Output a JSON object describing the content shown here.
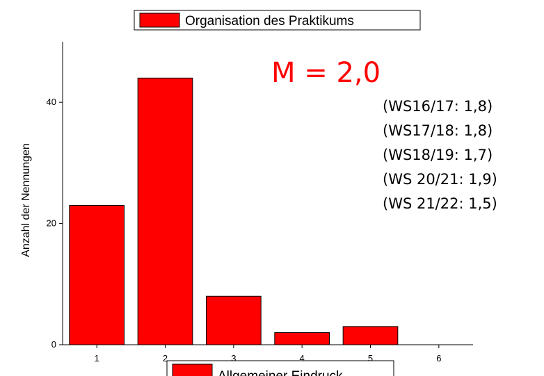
{
  "chart_data": {
    "type": "bar",
    "legend_top": "Organisation des Praktikums",
    "legend_bottom": "Allgemeiner Eindruck",
    "y_label": "Anzahl der Nennungen",
    "annotations": [
      "M = 2,0",
      "(WS16/17: 1,8)",
      "(WS17/18: 1,8)",
      "(WS18/19: 1,7)",
      "(WS 20/21: 1,9)",
      "(WS 21/22: 1,5)"
    ],
    "annotation_color": "#ff0000",
    "x": [
      1,
      2,
      3,
      4,
      5,
      6
    ],
    "series": [
      {
        "name": "Organisation des Praktikums",
        "color": "#ff0000",
        "values": [
          23,
          44,
          8,
          2,
          3,
          0
        ]
      }
    ],
    "xlim": [
      0.5,
      6.5
    ],
    "xticks": [
      1,
      2,
      3,
      4,
      5,
      6
    ],
    "ylim": [
      0,
      50
    ],
    "yticks": [
      0,
      20,
      40
    ]
  }
}
